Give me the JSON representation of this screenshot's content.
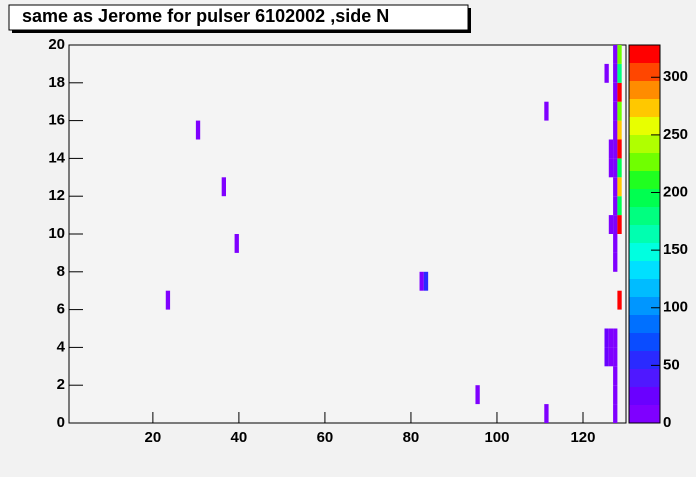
{
  "chart_data": {
    "type": "heatmap",
    "title": "same as Jerome for pulser 6102002 ,side N",
    "xlim": [
      0.5,
      130
    ],
    "ylim": [
      0,
      20
    ],
    "zlim": [
      0,
      328
    ],
    "xticks": [
      20,
      40,
      60,
      80,
      100,
      120
    ],
    "yticks": [
      0,
      2,
      4,
      6,
      8,
      10,
      12,
      14,
      16,
      18,
      20
    ],
    "zticks": [
      0,
      50,
      100,
      150,
      200,
      250,
      300
    ],
    "palette": [
      "#7f00ff",
      "#6a00ff",
      "#4f18ff",
      "#2a2aff",
      "#0a4cff",
      "#0070ff",
      "#0096ff",
      "#00bcff",
      "#00e0ff",
      "#00ffe0",
      "#00ffb0",
      "#00ff80",
      "#00ff50",
      "#20ff20",
      "#70ff00",
      "#b0ff00",
      "#e8ff00",
      "#ffc800",
      "#ff8c00",
      "#ff4600",
      "#ff0000"
    ],
    "x": [
      23,
      30,
      36,
      39,
      82,
      83,
      95,
      111,
      111,
      125,
      125,
      125,
      126,
      126,
      126,
      126,
      126,
      127,
      127,
      127,
      127,
      127,
      127,
      127,
      127,
      127,
      127,
      127,
      127,
      127,
      127,
      127,
      127,
      127,
      128,
      128,
      128,
      128,
      128,
      128,
      128,
      128,
      128,
      128,
      128
    ],
    "y": [
      6,
      15,
      12,
      9,
      7,
      7,
      1,
      0,
      16,
      18,
      3,
      4,
      14,
      13,
      10,
      3,
      4,
      0,
      1,
      2,
      3,
      4,
      8,
      9,
      10,
      11,
      12,
      13,
      14,
      15,
      16,
      17,
      18,
      19,
      6,
      10,
      11,
      12,
      13,
      14,
      15,
      16,
      17,
      18,
      19
    ],
    "values": [
      10,
      10,
      10,
      10,
      10,
      50,
      10,
      10,
      10,
      10,
      20,
      20,
      15,
      15,
      15,
      15,
      15,
      15,
      15,
      15,
      15,
      15,
      15,
      15,
      15,
      15,
      15,
      15,
      15,
      15,
      15,
      15,
      15,
      15,
      320,
      320,
      200,
      270,
      200,
      320,
      280,
      220,
      320,
      180,
      220
    ]
  }
}
